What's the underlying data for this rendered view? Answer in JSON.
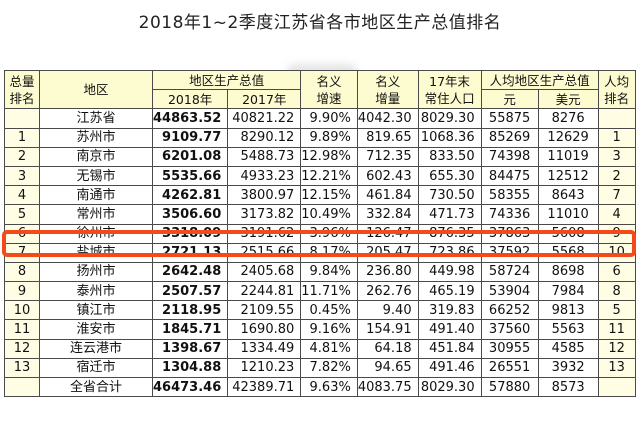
{
  "title": "2018年1~2季度江苏省各市地区生产总值排名",
  "headers": {
    "rank_top": "总量",
    "rank_bottom": "排名",
    "region": "地区",
    "gdp_group": "地区生产总值",
    "y2018": "2018年",
    "y2017": "2017年",
    "nominal_growth_top": "名义",
    "nominal_growth_bottom": "增速",
    "nominal_increase_top": "名义",
    "nominal_increase_bottom": "增量",
    "pop_top": "17年末",
    "pop_bottom": "常住人口",
    "per_capita_group": "人均地区生产总值",
    "yuan": "元",
    "usd": "美元",
    "pc_rank_top": "人均",
    "pc_rank_bottom": "排名"
  },
  "rows": [
    {
      "rank": "",
      "region": "江苏省",
      "gdp2018": "44863.52",
      "gdp2017": "40821.22",
      "growth": "9.90%",
      "increase": "4042.30",
      "pop": "8029.30",
      "yuan": "55875",
      "usd": "8276",
      "pc_rank": ""
    },
    {
      "rank": "1",
      "region": "苏州市",
      "gdp2018": "9109.77",
      "gdp2017": "8290.12",
      "growth": "9.89%",
      "increase": "819.65",
      "pop": "1068.36",
      "yuan": "85269",
      "usd": "12629",
      "pc_rank": "1"
    },
    {
      "rank": "2",
      "region": "南京市",
      "gdp2018": "6201.08",
      "gdp2017": "5488.73",
      "growth": "12.98%",
      "increase": "712.35",
      "pop": "833.50",
      "yuan": "74398",
      "usd": "11019",
      "pc_rank": "3"
    },
    {
      "rank": "3",
      "region": "无锡市",
      "gdp2018": "5535.66",
      "gdp2017": "4933.23",
      "growth": "12.21%",
      "increase": "602.43",
      "pop": "655.30",
      "yuan": "84475",
      "usd": "12512",
      "pc_rank": "2"
    },
    {
      "rank": "4",
      "region": "南通市",
      "gdp2018": "4262.81",
      "gdp2017": "3800.97",
      "growth": "12.15%",
      "increase": "461.84",
      "pop": "730.50",
      "yuan": "58355",
      "usd": "8643",
      "pc_rank": "7"
    },
    {
      "rank": "5",
      "region": "常州市",
      "gdp2018": "3506.60",
      "gdp2017": "3173.82",
      "growth": "10.49%",
      "increase": "332.84",
      "pop": "471.73",
      "yuan": "74336",
      "usd": "11010",
      "pc_rank": "4"
    },
    {
      "rank": "6",
      "region": "徐州市",
      "gdp2018": "3318.09",
      "gdp2017": "3191.62",
      "growth": "3.96%",
      "increase": "126.47",
      "pop": "876.35",
      "yuan": "37863",
      "usd": "5608",
      "pc_rank": "9"
    },
    {
      "rank": "7",
      "region": "盐城市",
      "gdp2018": "2721.13",
      "gdp2017": "2515.66",
      "growth": "8.17%",
      "increase": "205.47",
      "pop": "723.86",
      "yuan": "37592",
      "usd": "5568",
      "pc_rank": "10"
    },
    {
      "rank": "8",
      "region": "扬州市",
      "gdp2018": "2642.48",
      "gdp2017": "2405.68",
      "growth": "9.84%",
      "increase": "236.80",
      "pop": "449.98",
      "yuan": "58724",
      "usd": "8698",
      "pc_rank": "6"
    },
    {
      "rank": "9",
      "region": "泰州市",
      "gdp2018": "2507.57",
      "gdp2017": "2244.81",
      "growth": "11.71%",
      "increase": "262.76",
      "pop": "465.19",
      "yuan": "53904",
      "usd": "7984",
      "pc_rank": "8"
    },
    {
      "rank": "10",
      "region": "镇江市",
      "gdp2018": "2118.95",
      "gdp2017": "2109.55",
      "growth": "0.45%",
      "increase": "9.40",
      "pop": "319.83",
      "yuan": "66252",
      "usd": "9813",
      "pc_rank": "5"
    },
    {
      "rank": "11",
      "region": "淮安市",
      "gdp2018": "1845.71",
      "gdp2017": "1690.80",
      "growth": "9.16%",
      "increase": "154.91",
      "pop": "491.40",
      "yuan": "37560",
      "usd": "5563",
      "pc_rank": "11"
    },
    {
      "rank": "12",
      "region": "连云港市",
      "gdp2018": "1398.67",
      "gdp2017": "1334.49",
      "growth": "4.81%",
      "increase": "64.18",
      "pop": "451.84",
      "yuan": "30955",
      "usd": "4585",
      "pc_rank": "12"
    },
    {
      "rank": "13",
      "region": "宿迁市",
      "gdp2018": "1304.88",
      "gdp2017": "1210.23",
      "growth": "7.82%",
      "increase": "94.65",
      "pop": "491.46",
      "yuan": "26551",
      "usd": "3932",
      "pc_rank": "13"
    },
    {
      "rank": "",
      "region": "全省合计",
      "gdp2018": "46473.46",
      "gdp2017": "42389.71",
      "growth": "9.63%",
      "increase": "4083.75",
      "pop": "8029.30",
      "yuan": "57880",
      "usd": "8573",
      "pc_rank": ""
    }
  ],
  "highlighted_region": "徐州市",
  "colors": {
    "header_bg": "#fdfbd0",
    "rank_bg": "#fffde3",
    "highlight_border": "#f24a1a"
  }
}
